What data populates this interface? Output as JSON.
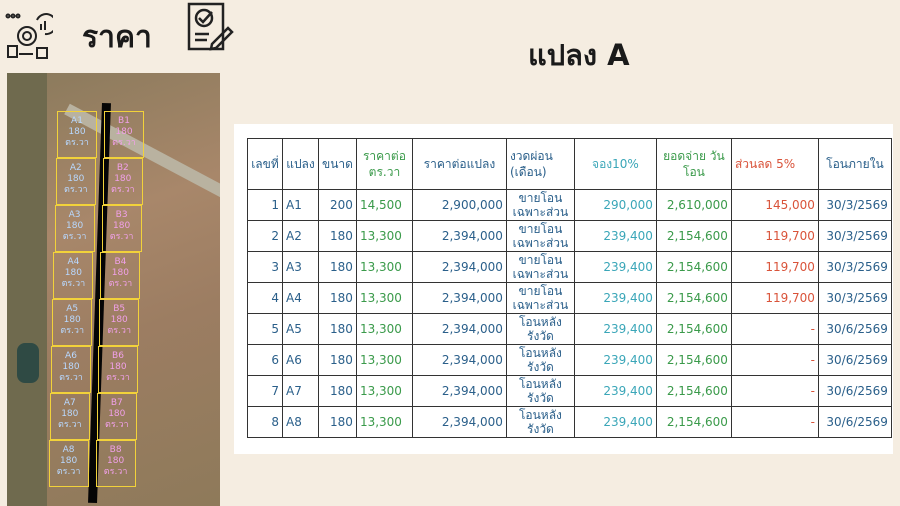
{
  "header": {
    "title": "ราคา",
    "plot_title": "แปลง A",
    "icons": [
      "workflow-gear-icon",
      "checklist-sign-icon"
    ]
  },
  "map": {
    "plots_a": [
      "A1",
      "A2",
      "A3",
      "A4",
      "A5",
      "A6",
      "A7",
      "A8"
    ],
    "plots_b": [
      "B1",
      "B2",
      "B3",
      "B4",
      "B5",
      "B6",
      "B7",
      "B8"
    ],
    "size": "180",
    "unit": "ตร.วา"
  },
  "colors": {
    "background": "#f5ede1",
    "header_text": "#2a5f8a",
    "green": "#3a9a4a",
    "cyan": "#3aa6b8",
    "red": "#d9533a"
  },
  "table": {
    "headers": [
      "เลขที่",
      "แปลง",
      "ขนาด",
      "ราคาต่อ ตร.วา",
      "ราคาต่อแปลง",
      "งวดผ่อน (เดือน)",
      "จอง10%",
      "ยอดจ่าย วันโอน",
      "ส่วนลด 5%",
      "โอนภายใน"
    ],
    "rows": [
      [
        "1",
        "A1",
        "200",
        "14,500",
        "2,900,000",
        "ขายโอน เฉพาะส่วน",
        "290,000",
        "2,610,000",
        "145,000",
        "30/3/2569"
      ],
      [
        "2",
        "A2",
        "180",
        "13,300",
        "2,394,000",
        "ขายโอน เฉพาะส่วน",
        "239,400",
        "2,154,600",
        "119,700",
        "30/3/2569"
      ],
      [
        "3",
        "A3",
        "180",
        "13,300",
        "2,394,000",
        "ขายโอน เฉพาะส่วน",
        "239,400",
        "2,154,600",
        "119,700",
        "30/3/2569"
      ],
      [
        "4",
        "A4",
        "180",
        "13,300",
        "2,394,000",
        "ขายโอน เฉพาะส่วน",
        "239,400",
        "2,154,600",
        "119,700",
        "30/3/2569"
      ],
      [
        "5",
        "A5",
        "180",
        "13,300",
        "2,394,000",
        "โอนหลัง รังวัด",
        "239,400",
        "2,154,600",
        "-",
        "30/6/2569"
      ],
      [
        "6",
        "A6",
        "180",
        "13,300",
        "2,394,000",
        "โอนหลัง รังวัด",
        "239,400",
        "2,154,600",
        "-",
        "30/6/2569"
      ],
      [
        "7",
        "A7",
        "180",
        "13,300",
        "2,394,000",
        "โอนหลัง รังวัด",
        "239,400",
        "2,154,600",
        "-",
        "30/6/2569"
      ],
      [
        "8",
        "A8",
        "180",
        "13,300",
        "2,394,000",
        "โอนหลัง รังวัด",
        "239,400",
        "2,154,600",
        "-",
        "30/6/2569"
      ]
    ]
  }
}
